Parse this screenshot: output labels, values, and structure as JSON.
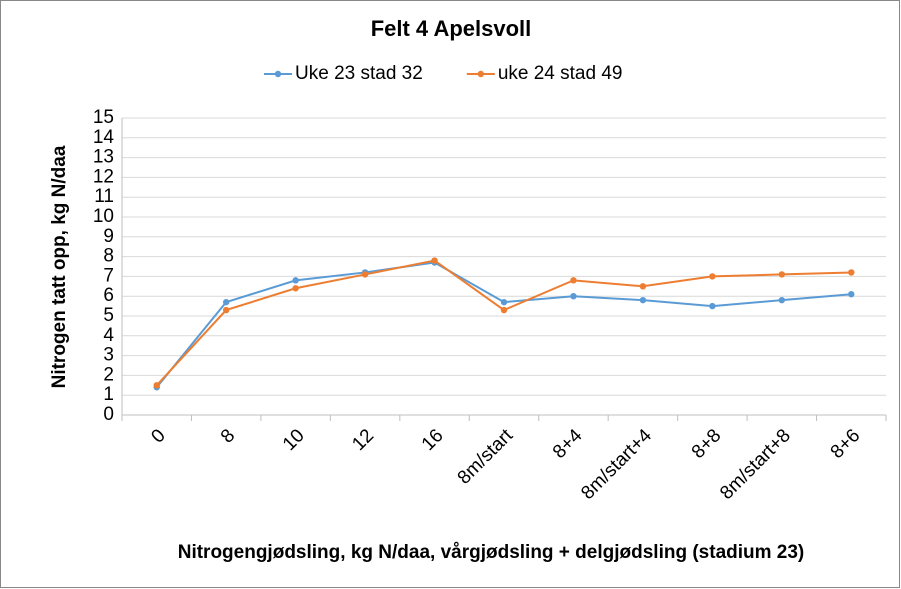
{
  "chart_data": {
    "type": "line",
    "title": "Felt 4 Apelsvoll",
    "x_label": "Nitrogengjødsling, kg N/daa, vårgjødsling + delgjødsling (stadium 23)",
    "y_label": "Nitrogen tatt opp, kg N/daa",
    "categories": [
      "0",
      "8",
      "10",
      "12",
      "16",
      "8m/start",
      "8+4",
      "8m/start+4",
      "8+8",
      "8m/start+8",
      "8+6"
    ],
    "series": [
      {
        "name": "Uke 23 stad 32",
        "color": "#5b9bd5",
        "values": [
          1.4,
          5.7,
          6.8,
          7.2,
          7.7,
          5.7,
          6.0,
          5.8,
          5.5,
          5.8,
          6.1
        ]
      },
      {
        "name": "uke 24 stad 49",
        "color": "#ed7d31",
        "values": [
          1.5,
          5.3,
          6.4,
          7.1,
          7.8,
          5.3,
          6.8,
          6.5,
          7.0,
          7.1,
          7.2
        ]
      }
    ],
    "ylim": [
      0,
      15
    ],
    "yticks": [
      0,
      1,
      2,
      3,
      4,
      5,
      6,
      7,
      8,
      9,
      10,
      11,
      12,
      13,
      14,
      15
    ],
    "grid": true
  }
}
